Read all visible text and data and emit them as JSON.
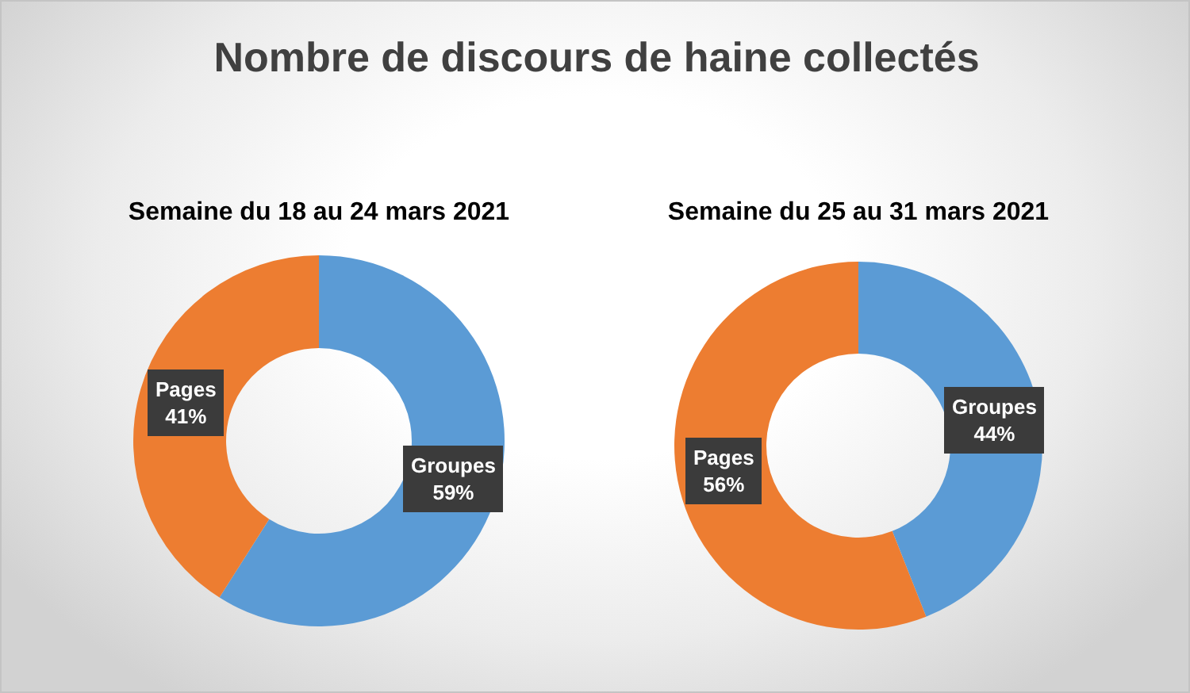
{
  "chart_data": [
    {
      "type": "donut",
      "title": "Nombre de discours de haine collectés",
      "subtitle": "Semaine du 18 au 24 mars 2021",
      "categories": [
        "Groupes",
        "Pages"
      ],
      "values": [
        59,
        41
      ],
      "colors": [
        "#5b9bd5",
        "#ed7d31"
      ],
      "value_labels": [
        "59%",
        "41%"
      ]
    },
    {
      "type": "donut",
      "subtitle": "Semaine du 25 au 31 mars 2021",
      "categories": [
        "Groupes",
        "Pages"
      ],
      "values": [
        44,
        56
      ],
      "colors": [
        "#5b9bd5",
        "#ed7d31"
      ],
      "value_labels": [
        "44%",
        "56%"
      ]
    }
  ]
}
